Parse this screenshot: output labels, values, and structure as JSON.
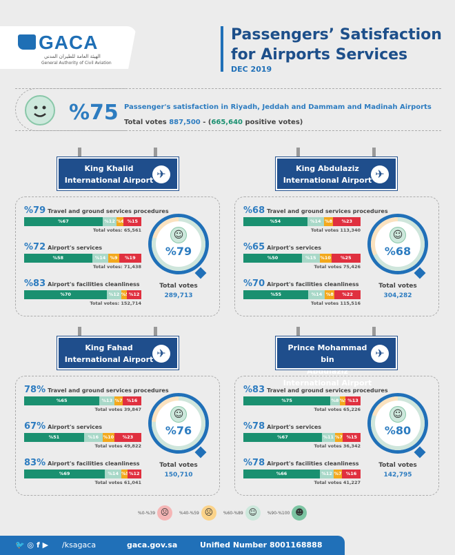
{
  "logo": {
    "text": "GACA",
    "arabic": "الهيئة العامة للطيران المدني",
    "english": "General Authority of Civil Aviation"
  },
  "header": {
    "title_line1": "Passengers’ Satisfaction",
    "title_line2": "for Airports Services",
    "date": "DEC 2019"
  },
  "summary": {
    "percent": "%75",
    "description": "Passenger's satisfaction in Riyadh, Jeddah and Dammam and Madinah Airports",
    "total_label": "Total votes",
    "total_votes": "887,500",
    "separator": " - (",
    "positive_votes": "665,640",
    "positive_label": " positive votes)",
    "satisfaction": 75
  },
  "colors": {
    "very_satisfied": "#1a9070",
    "satisfied": "#a8d8c8",
    "neutral": "#f3a81c",
    "dissatisfied": "#e0303f",
    "accent": "#2d7cc0",
    "sign": "#1f4e8c"
  },
  "airports": [
    {
      "name_line1": "King Khalid",
      "name_line2": "International Airport",
      "overall": "%79",
      "overall_value": 79,
      "total_label": "Total votes",
      "total_votes": "289,713",
      "rows": [
        {
          "percent": "%79",
          "label": "Travel and ground services procedures",
          "segments": [
            67,
            12,
            6,
            15
          ],
          "seg_labels": [
            "%67",
            "%12",
            "%6",
            "%15"
          ],
          "votes": "Total votes:  65,561"
        },
        {
          "percent": "%72",
          "label": "Airport's services",
          "segments": [
            58,
            14,
            9,
            19
          ],
          "seg_labels": [
            "%58",
            "%14",
            "%9",
            "%19"
          ],
          "votes": "Total votes:  71,438"
        },
        {
          "percent": "%83",
          "label": "Airport's facilities cleanliness",
          "segments": [
            70,
            12,
            5,
            12
          ],
          "seg_labels": [
            "%70",
            "%12",
            "%5",
            "%12"
          ],
          "votes": "Total votes:  152,714"
        }
      ]
    },
    {
      "name_line1": "King Abdulaziz",
      "name_line2": "International Airport",
      "overall": "%68",
      "overall_value": 68,
      "total_label": "Total votes",
      "total_votes": "304,282",
      "rows": [
        {
          "percent": "%68",
          "label": "Travel and ground services procedures",
          "segments": [
            54,
            14,
            8,
            23
          ],
          "seg_labels": [
            "%54",
            "%14",
            "%8",
            "%23"
          ],
          "votes": "Total votes  113,340"
        },
        {
          "percent": "%65",
          "label": "Airport's services",
          "segments": [
            50,
            15,
            10,
            25
          ],
          "seg_labels": [
            "%50",
            "%15",
            "%10",
            "%25"
          ],
          "votes": "Total votes  75,426"
        },
        {
          "percent": "%70",
          "label": "Airport's facilities cleanliness",
          "segments": [
            55,
            14,
            8,
            22
          ],
          "seg_labels": [
            "%55",
            "%14",
            "%8",
            "%22"
          ],
          "votes": "Total votes  115,516"
        }
      ]
    },
    {
      "name_line1": "King Fahad",
      "name_line2": "International Airport",
      "overall": "%76",
      "overall_value": 76,
      "total_label": "Total votes",
      "total_votes": "150,710",
      "rows": [
        {
          "percent": "78%",
          "label": "Travel and ground services procedures",
          "segments": [
            65,
            13,
            7,
            16
          ],
          "seg_labels": [
            "%65",
            "%13",
            "%7",
            "%16"
          ],
          "votes": "Total votes  39,847"
        },
        {
          "percent": "67%",
          "label": "Airport's services",
          "segments": [
            51,
            16,
            10,
            23
          ],
          "seg_labels": [
            "%51",
            "%16",
            "%10",
            "%23"
          ],
          "votes": "Total votes  49,822"
        },
        {
          "percent": "83%",
          "label": "Airport's facilities cleanliness",
          "segments": [
            69,
            14,
            5,
            12
          ],
          "seg_labels": [
            "%69",
            "%14",
            "%5",
            "%12"
          ],
          "votes": "Total votes  61,041"
        }
      ]
    },
    {
      "name_line1": "Prince Mohammad bin",
      "name_line2": "Abdulaziz International Airport",
      "overall": "%80",
      "overall_value": 80,
      "total_label": "Total votes",
      "total_votes": "142,795",
      "rows": [
        {
          "percent": "%83",
          "label": "Travel and ground services procedures",
          "segments": [
            75,
            8,
            5,
            13
          ],
          "seg_labels": [
            "%75",
            "%8",
            "%5",
            "%13"
          ],
          "votes": "Total votes  65,226"
        },
        {
          "percent": "%78",
          "label": "Airport's services",
          "segments": [
            67,
            11,
            7,
            15
          ],
          "seg_labels": [
            "%67",
            "%11",
            "%7",
            "%15"
          ],
          "votes": "Total votes  36,342"
        },
        {
          "percent": "%78",
          "label": "Airport's facilities cleanliness",
          "segments": [
            66,
            12,
            7,
            16
          ],
          "seg_labels": [
            "%66",
            "%12",
            "%7",
            "%16"
          ],
          "votes": "Total votes  41,227"
        }
      ]
    }
  ],
  "legend": [
    {
      "label": "%0-%39",
      "icon": "crying-face-icon",
      "face": "☹",
      "color": "#f5b5b5"
    },
    {
      "label": "%40-%59",
      "icon": "sad-face-icon",
      "face": "☹",
      "color": "#fbd38a"
    },
    {
      "label": "%60-%89",
      "icon": "smile-face-icon",
      "face": "☺",
      "color": "#cde8dc"
    },
    {
      "label": "%90-%100",
      "icon": "grin-face-icon",
      "face": "☻",
      "color": "#7cc4a2"
    }
  ],
  "footer": {
    "social_handle": "/ksagaca",
    "website": "gaca.gov.sa",
    "unified_number": "Unified Number 8001168888"
  }
}
